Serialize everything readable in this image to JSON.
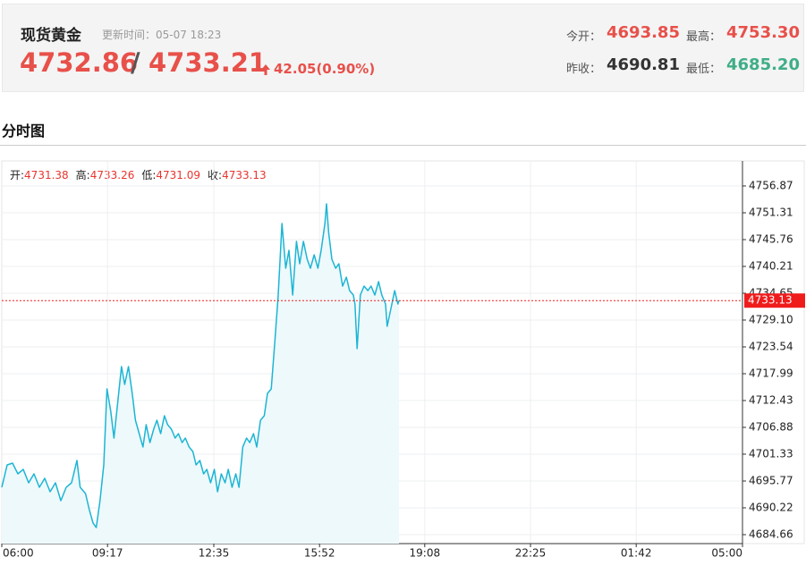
{
  "header": {
    "title": "现货黄金",
    "update": "更新时间：05-07 18:23",
    "bid": "4732.86",
    "separator": "/",
    "ask": "4733.21",
    "change": "42.05(0.90%)",
    "stats": [
      {
        "label": "今开：",
        "value": "4693.85"
      },
      {
        "label": "最高：",
        "value": "4753.30"
      },
      {
        "label": "昨收：",
        "value": "4690.81"
      },
      {
        "label": "最低：",
        "value": "4685.20"
      }
    ]
  },
  "section": {
    "title": "分时图"
  },
  "chart_data": {
    "type": "line",
    "ohlc": [
      {
        "label": "开:",
        "value": "4731.38"
      },
      {
        "label": "高:",
        "value": "4733.26"
      },
      {
        "label": "低:",
        "value": "4731.09"
      },
      {
        "label": "收:",
        "value": "4733.13"
      }
    ],
    "x": [
      0,
      10,
      20,
      30,
      40,
      50,
      60,
      70,
      80,
      90,
      100,
      110,
      120,
      130,
      140,
      146,
      156,
      163,
      170,
      176,
      183,
      190,
      196,
      203,
      209,
      216,
      223,
      229,
      236,
      243,
      249,
      256,
      263,
      269,
      276,
      283,
      289,
      296,
      303,
      309,
      316,
      323,
      329,
      336,
      342,
      349,
      356,
      362,
      369,
      376,
      382,
      389,
      396,
      402,
      409,
      416,
      422,
      429,
      436,
      442,
      449,
      456,
      462,
      469,
      475,
      482,
      489,
      495,
      502,
      509,
      515,
      522,
      529,
      535,
      542,
      549,
      555,
      562,
      569,
      575,
      582,
      589,
      595,
      602,
      605,
      609,
      615,
      622,
      628,
      635,
      642,
      648,
      655,
      658,
      662,
      668,
      675,
      682,
      688,
      695,
      702,
      708,
      715,
      718,
      725,
      732,
      738,
      740
    ],
    "series": [
      {
        "color": "#1cb5d4",
        "fill": "#eef9fc",
        "values": [
          4694.47,
          4699.1,
          4699.47,
          4697.25,
          4698.18,
          4695.4,
          4697.25,
          4694.47,
          4696.33,
          4693.55,
          4695.4,
          4691.7,
          4694.47,
          4695.4,
          4700.03,
          4694.47,
          4693.18,
          4689.85,
          4687.07,
          4686.14,
          4691.7,
          4699.1,
          4714.84,
          4710.21,
          4704.66,
          4712.06,
          4719.47,
          4715.76,
          4719.47,
          4713.91,
          4708.36,
          4705.58,
          4702.81,
          4707.43,
          4703.73,
          4706.51,
          4708.36,
          4705.58,
          4709.29,
          4707.43,
          4706.51,
          4704.66,
          4705.58,
          4703.73,
          4704.66,
          4702.81,
          4701.88,
          4699.1,
          4700.03,
          4697.25,
          4698.18,
          4695.4,
          4698.18,
          4693.55,
          4697.25,
          4695.4,
          4698.18,
          4694.47,
          4697.25,
          4694.47,
          4702.81,
          4704.66,
          4703.73,
          4705.58,
          4702.81,
          4708.36,
          4709.29,
          4713.91,
          4714.84,
          4725.02,
          4734.28,
          4749.09,
          4739.83,
          4743.54,
          4734.28,
          4745.39,
          4740.76,
          4745.39,
          4741.68,
          4739.83,
          4742.61,
          4739.83,
          4743.54,
          4749.09,
          4753.16,
          4747.24,
          4741.68,
          4739.83,
          4740.76,
          4736.13,
          4737.98,
          4735.2,
          4734.28,
          4732.43,
          4723.17,
          4734.28,
          4736.13,
          4735.2,
          4736.13,
          4734.28,
          4737.06,
          4734.28,
          4732.43,
          4727.8,
          4731.5,
          4735.2,
          4732.43,
          4733.13
        ]
      }
    ],
    "xlim": [
      0,
      1380
    ],
    "xticks": [
      {
        "value": 0,
        "label": "06:00"
      },
      {
        "value": 197,
        "label": "09:17"
      },
      {
        "value": 395,
        "label": "12:35"
      },
      {
        "value": 592,
        "label": "15:52"
      },
      {
        "value": 788,
        "label": "19:08"
      },
      {
        "value": 985,
        "label": "22:25"
      },
      {
        "value": 1182,
        "label": "01:42"
      },
      {
        "value": 1380,
        "label": "05:00"
      }
    ],
    "ylim": [
      4682.81,
      4762.05
    ],
    "yticks": [
      4756.87,
      4751.31,
      4745.76,
      4740.21,
      4734.65,
      {
        "value": 4729.1,
        "label": "4729.10"
      },
      4723.54,
      4717.99,
      4712.43,
      4706.88,
      4701.33,
      4695.77,
      4690.22,
      4684.66
    ],
    "grid": true,
    "last_price": 4733.13,
    "last_color": "#f01c1c"
  }
}
